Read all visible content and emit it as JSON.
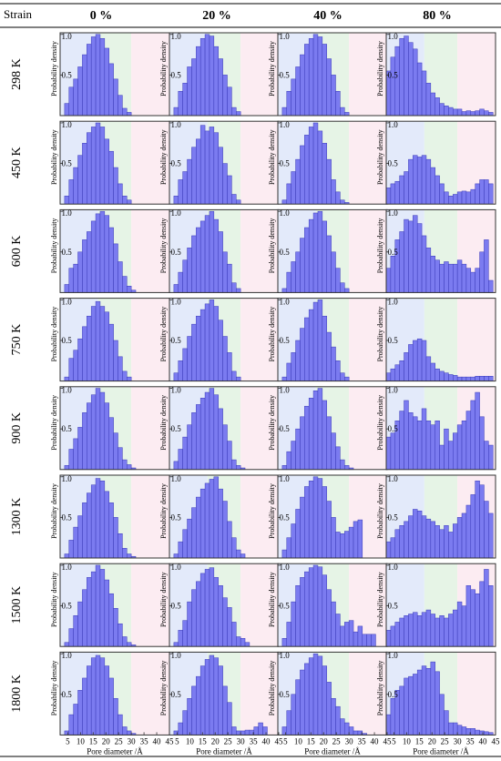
{
  "header": {
    "strain_label": "Strain",
    "columns": [
      "0 %",
      "20 %",
      "40 %",
      "80 %"
    ]
  },
  "rows": [
    "298 K",
    "450 K",
    "600 K",
    "750 K",
    "900 K",
    "1300 K",
    "1500 K",
    "1800 K"
  ],
  "colors": {
    "bar": "#7b7bf0",
    "bar_edge": "#3a3ab8",
    "zone_blue": "#e3eafa",
    "zone_green": "#e6f4e6",
    "zone_pink": "#fcecf2"
  },
  "chart_data": {
    "type": "bar",
    "xlabel": "Pore diameter /Å",
    "ylabel": "Probability density",
    "x_ticks": [
      5,
      10,
      15,
      20,
      25,
      30,
      35,
      40,
      45
    ],
    "y_ticks": [
      0.5,
      1.0
    ],
    "y_tick_labels": [
      "0.5",
      "1.0"
    ],
    "xlim": [
      2,
      45
    ],
    "ylim": [
      0,
      1.02
    ],
    "bin_width": 1.75,
    "bin_start": 2,
    "shaded_zones": [
      {
        "from": 2,
        "to": 17,
        "color": "blue"
      },
      {
        "from": 17,
        "to": 30,
        "color": "green"
      },
      {
        "from": 30,
        "to": 45,
        "color": "pink"
      }
    ],
    "panels": [
      [
        [
          0,
          0.15,
          0.35,
          0.45,
          0.6,
          0.75,
          0.88,
          0.97,
          1.0,
          0.95,
          0.83,
          0.64,
          0.45,
          0.25,
          0.09,
          0.04,
          0,
          0,
          0,
          0,
          0,
          0,
          0,
          0
        ],
        [
          0,
          0.1,
          0.3,
          0.45,
          0.6,
          0.75,
          0.88,
          0.95,
          1.0,
          0.95,
          0.8,
          0.65,
          0.45,
          0.25,
          0.1,
          0.05,
          0,
          0,
          0,
          0,
          0,
          0,
          0,
          0
        ],
        [
          0,
          0.1,
          0.3,
          0.35,
          0.5,
          0.65,
          0.75,
          0.88,
          0.97,
          1.0,
          0.95,
          0.8,
          0.6,
          0.38,
          0.2,
          0.08,
          0.03,
          0,
          0,
          0,
          0,
          0,
          0,
          0
        ],
        [
          0,
          0.05,
          0.28,
          0.38,
          0.52,
          0.67,
          0.8,
          0.92,
          0.98,
          0.92,
          0.85,
          0.7,
          0.5,
          0.3,
          0.12,
          0.05,
          0,
          0,
          0,
          0,
          0,
          0,
          0,
          0
        ],
        [
          0,
          0.05,
          0.25,
          0.38,
          0.52,
          0.7,
          0.82,
          0.92,
          1.0,
          0.95,
          0.82,
          0.64,
          0.45,
          0.27,
          0.12,
          0.06,
          0.02,
          0,
          0,
          0,
          0,
          0,
          0,
          0
        ],
        [
          0,
          0.05,
          0.22,
          0.38,
          0.52,
          0.68,
          0.8,
          0.9,
          0.98,
          0.95,
          0.82,
          0.68,
          0.5,
          0.3,
          0.12,
          0.05,
          0.02,
          0,
          0,
          0,
          0,
          0,
          0,
          0
        ],
        [
          0,
          0.05,
          0.22,
          0.38,
          0.55,
          0.7,
          0.85,
          0.92,
          1.0,
          0.95,
          0.82,
          0.65,
          0.47,
          0.28,
          0.12,
          0.05,
          0.02,
          0,
          0,
          0,
          0,
          0,
          0,
          0
        ],
        [
          0,
          0.05,
          0.25,
          0.38,
          0.55,
          0.7,
          0.85,
          0.95,
          0.98,
          0.95,
          0.85,
          0.7,
          0.45,
          0.25,
          0.1,
          0.05,
          0.02,
          0,
          0,
          0,
          0,
          0,
          0,
          0
        ]
      ],
      [
        [
          0,
          0.1,
          0.3,
          0.4,
          0.6,
          0.7,
          0.85,
          0.95,
          1.0,
          0.98,
          0.85,
          0.7,
          0.5,
          0.35,
          0.1,
          0.05,
          0,
          0,
          0,
          0,
          0,
          0,
          0,
          0
        ],
        [
          0,
          0.1,
          0.3,
          0.4,
          0.55,
          0.7,
          0.8,
          0.97,
          0.9,
          0.95,
          0.88,
          0.7,
          0.5,
          0.35,
          0.12,
          0.05,
          0,
          0,
          0,
          0,
          0,
          0,
          0,
          0
        ],
        [
          0,
          0.1,
          0.25,
          0.4,
          0.55,
          0.7,
          0.8,
          0.88,
          0.95,
          1.0,
          0.9,
          0.75,
          0.5,
          0.35,
          0.12,
          0.05,
          0,
          0,
          0,
          0,
          0,
          0,
          0,
          0
        ],
        [
          0,
          0.1,
          0.25,
          0.4,
          0.55,
          0.7,
          0.8,
          0.88,
          0.95,
          1.0,
          0.92,
          0.75,
          0.55,
          0.35,
          0.12,
          0.05,
          0,
          0,
          0,
          0,
          0,
          0,
          0,
          0
        ],
        [
          0,
          0.1,
          0.25,
          0.4,
          0.55,
          0.7,
          0.8,
          0.88,
          0.95,
          1.0,
          0.92,
          0.75,
          0.55,
          0.35,
          0.12,
          0.05,
          0.02,
          0,
          0,
          0,
          0,
          0,
          0,
          0
        ],
        [
          0,
          0.05,
          0.2,
          0.35,
          0.48,
          0.62,
          0.75,
          0.85,
          0.92,
          0.97,
          1.0,
          0.85,
          0.7,
          0.45,
          0.25,
          0.1,
          0.05,
          0,
          0,
          0,
          0,
          0,
          0,
          0
        ],
        [
          0,
          0.05,
          0.2,
          0.32,
          0.55,
          0.7,
          0.8,
          0.9,
          0.95,
          0.97,
          0.85,
          0.75,
          0.6,
          0.48,
          0.3,
          0.12,
          0.1,
          0.05,
          0,
          0,
          0,
          0,
          0,
          0
        ],
        [
          0,
          0.05,
          0.15,
          0.3,
          0.45,
          0.6,
          0.72,
          0.85,
          0.93,
          0.98,
          0.95,
          0.85,
          0.6,
          0.4,
          0.1,
          0.05,
          0.05,
          0.06,
          0.06,
          0.1,
          0.15,
          0.1,
          0,
          0
        ]
      ],
      [
        [
          0,
          0.1,
          0.3,
          0.45,
          0.6,
          0.75,
          0.88,
          0.95,
          1.0,
          0.97,
          0.88,
          0.7,
          0.5,
          0.3,
          0.1,
          0.04,
          0,
          0,
          0,
          0,
          0,
          0,
          0,
          0
        ],
        [
          0,
          0.05,
          0.25,
          0.4,
          0.55,
          0.72,
          0.85,
          0.95,
          1.0,
          0.9,
          0.75,
          0.55,
          0.3,
          0.15,
          0.05,
          0.02,
          0,
          0,
          0,
          0,
          0,
          0,
          0,
          0
        ],
        [
          0,
          0.05,
          0.25,
          0.38,
          0.5,
          0.67,
          0.8,
          0.9,
          0.98,
          1.0,
          0.88,
          0.7,
          0.5,
          0.3,
          0.12,
          0.05,
          0,
          0,
          0,
          0,
          0,
          0,
          0,
          0
        ],
        [
          0,
          0.05,
          0.22,
          0.35,
          0.5,
          0.65,
          0.78,
          0.88,
          0.97,
          1.0,
          0.8,
          0.6,
          0.42,
          0.25,
          0.1,
          0.05,
          0,
          0,
          0,
          0,
          0,
          0,
          0,
          0
        ],
        [
          0,
          0.05,
          0.22,
          0.35,
          0.5,
          0.65,
          0.78,
          0.88,
          0.97,
          1.0,
          0.85,
          0.65,
          0.45,
          0.28,
          0.12,
          0.05,
          0.02,
          0,
          0,
          0,
          0,
          0,
          0,
          0
        ],
        [
          0,
          0.1,
          0.25,
          0.42,
          0.6,
          0.75,
          0.88,
          0.95,
          1.0,
          0.98,
          0.88,
          0.7,
          0.5,
          0.32,
          0.3,
          0.33,
          0.38,
          0.45,
          0.47,
          0,
          0,
          0,
          0,
          0
        ],
        [
          0,
          0.1,
          0.3,
          0.55,
          0.75,
          0.85,
          0.92,
          0.97,
          1.0,
          0.98,
          0.88,
          0.7,
          0.55,
          0.4,
          0.25,
          0.3,
          0.32,
          0.18,
          0.25,
          0.15,
          0.15,
          0.15,
          0,
          0
        ],
        [
          0,
          0.1,
          0.3,
          0.5,
          0.68,
          0.8,
          0.88,
          0.95,
          1.0,
          0.97,
          0.85,
          0.65,
          0.45,
          0.35,
          0.2,
          0.15,
          0.1,
          0.05,
          0.05,
          0.02,
          0,
          0,
          0,
          0
        ]
      ],
      [
        [
          0.55,
          0.72,
          0.85,
          0.95,
          0.98,
          0.9,
          0.82,
          0.65,
          0.55,
          0.4,
          0.28,
          0.22,
          0.15,
          0.12,
          0.1,
          0.08,
          0.08,
          0.05,
          0.06,
          0.05,
          0.06,
          0.08,
          0.06,
          0.04
        ],
        [
          0.2,
          0.25,
          0.28,
          0.35,
          0.4,
          0.55,
          0.6,
          0.58,
          0.6,
          0.55,
          0.45,
          0.35,
          0.25,
          0.15,
          0.1,
          0.12,
          0.15,
          0.16,
          0.15,
          0.18,
          0.25,
          0.3,
          0.3,
          0.25
        ],
        [
          0.3,
          0.45,
          0.65,
          0.75,
          0.9,
          0.88,
          0.95,
          0.85,
          0.7,
          0.55,
          0.45,
          0.4,
          0.35,
          0.38,
          0.35,
          0.35,
          0.4,
          0.35,
          0.3,
          0.25,
          0.3,
          0.5,
          0.65,
          0.15
        ],
        [
          0.1,
          0.15,
          0.2,
          0.25,
          0.35,
          0.45,
          0.5,
          0.52,
          0.5,
          0.3,
          0.22,
          0.15,
          0.12,
          0.1,
          0.08,
          0.07,
          0.05,
          0.05,
          0.05,
          0.05,
          0.06,
          0.06,
          0.06,
          0.06
        ],
        [
          0.4,
          0.45,
          0.6,
          0.72,
          0.85,
          0.7,
          0.65,
          0.6,
          0.75,
          0.6,
          0.55,
          0.6,
          0.3,
          0.5,
          0.35,
          0.45,
          0.55,
          0.6,
          0.72,
          0.85,
          0.95,
          0.65,
          0.35,
          0.3
        ],
        [
          0.2,
          0.25,
          0.35,
          0.4,
          0.45,
          0.52,
          0.6,
          0.58,
          0.52,
          0.48,
          0.45,
          0.4,
          0.35,
          0.4,
          0.32,
          0.42,
          0.5,
          0.55,
          0.65,
          0.78,
          0.95,
          0.9,
          0.7,
          0.55
        ],
        [
          0.2,
          0.25,
          0.3,
          0.35,
          0.38,
          0.4,
          0.42,
          0.38,
          0.42,
          0.45,
          0.4,
          0.35,
          0.38,
          0.35,
          0.4,
          0.45,
          0.55,
          0.5,
          0.75,
          0.7,
          0.65,
          0.8,
          0.95,
          0.75
        ],
        [
          0.25,
          0.45,
          0.55,
          0.6,
          0.7,
          0.72,
          0.75,
          0.8,
          0.85,
          0.82,
          0.9,
          0.78,
          0.5,
          0.3,
          0.15,
          0.15,
          0.12,
          0.1,
          0.08,
          0.08,
          0.06,
          0.05,
          0.04,
          0.03
        ]
      ]
    ]
  }
}
